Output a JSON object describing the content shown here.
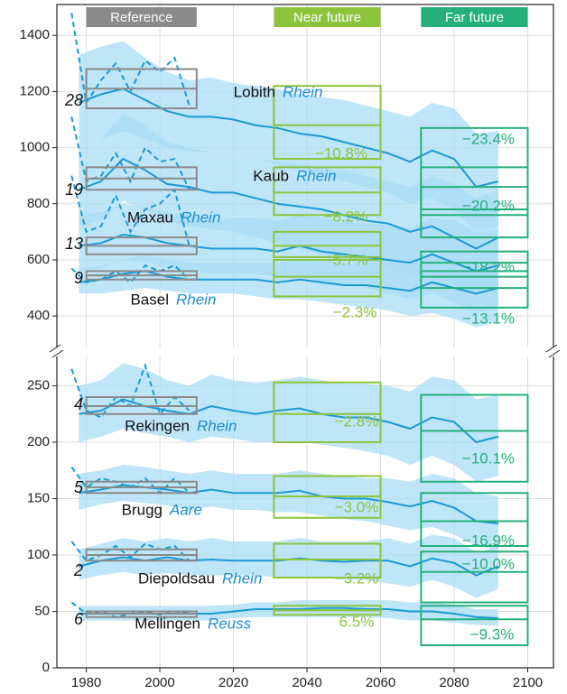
{
  "chart_data": {
    "type": "line",
    "x": [
      1978,
      1984,
      1990,
      1996,
      2002,
      2008,
      2014,
      2020,
      2026,
      2032,
      2038,
      2044,
      2050,
      2056,
      2062,
      2068,
      2074,
      2080,
      2086,
      2092
    ],
    "obs_x": [
      1976,
      1980,
      1984,
      1988,
      1992,
      1996,
      2000,
      2004,
      2008
    ],
    "xlim": [
      1972,
      2107
    ],
    "xticks": [
      1980,
      2000,
      2020,
      2040,
      2060,
      2080,
      2100
    ],
    "grid": true,
    "line_color": "#1a9ad6",
    "band_color": "#a9dcf6",
    "periods": [
      {
        "name": "Reference",
        "range": [
          1980,
          2010
        ],
        "color": "#8a8a8a"
      },
      {
        "name": "Near future",
        "range": [
          2031,
          2060
        ],
        "color": "#8cc43c"
      },
      {
        "name": "Far future",
        "range": [
          2071,
          2100
        ],
        "color": "#24b07a"
      }
    ],
    "panels": [
      {
        "ylim": [
          288,
          1510
        ],
        "yticks": [
          400,
          600,
          800,
          1000,
          1200,
          1400
        ],
        "gauges": [
          {
            "name": "Lobith",
            "river": "Rhein",
            "number": 28,
            "mean": [
              1160,
              1190,
              1210,
              1170,
              1130,
              1110,
              1110,
              1100,
              1080,
              1070,
              1050,
              1040,
              1020,
              1000,
              980,
              950,
              990,
              960,
              860,
              880
            ],
            "low": [
              1000,
              1030,
              1060,
              1030,
              1000,
              990,
              980,
              980,
              960,
              940,
              920,
              900,
              880,
              860,
              840,
              800,
              820,
              780,
              700,
              720
            ],
            "high": [
              1330,
              1360,
              1380,
              1320,
              1270,
              1240,
              1250,
              1230,
              1220,
              1210,
              1190,
              1180,
              1170,
              1150,
              1130,
              1110,
              1160,
              1140,
              1050,
              1060
            ],
            "observed": [
              1480,
              1160,
              1240,
              1300,
              1200,
              1310,
              1270,
              1320,
              1150
            ],
            "boxes": [
              {
                "low": 1140,
                "mid": 1210,
                "high": 1280
              },
              {
                "low": 960,
                "mid": 1080,
                "high": 1220,
                "label": "−10.8%"
              },
              {
                "low": 780,
                "mid": 930,
                "high": 1070,
                "label": "−23.4%"
              }
            ]
          },
          {
            "name": "Kaub",
            "river": "Rhein",
            "number": 19,
            "mean": [
              850,
              880,
              960,
              920,
              870,
              860,
              840,
              840,
              820,
              800,
              790,
              780,
              760,
              740,
              730,
              700,
              720,
              680,
              640,
              680
            ],
            "low": [
              720,
              740,
              810,
              780,
              740,
              720,
              710,
              700,
              680,
              660,
              640,
              620,
              600,
              590,
              570,
              540,
              550,
              510,
              470,
              500
            ],
            "high": [
              1000,
              1030,
              1120,
              1080,
              1020,
              1000,
              980,
              980,
              960,
              950,
              940,
              930,
              920,
              900,
              880,
              860,
              900,
              870,
              820,
              850
            ],
            "observed": [
              1110,
              880,
              900,
              980,
              880,
              1000,
              950,
              960,
              850
            ],
            "boxes": [
              {
                "low": 850,
                "mid": 890,
                "high": 930
              },
              {
                "low": 760,
                "mid": 840,
                "high": 930,
                "label": "−8.2%"
              },
              {
                "low": 680,
                "mid": 760,
                "high": 860,
                "label": "−20.2%"
              }
            ]
          },
          {
            "name": "Maxau",
            "river": "Rhein",
            "number": 13,
            "mean": [
              650,
              660,
              690,
              680,
              660,
              650,
              640,
              640,
              640,
              630,
              650,
              630,
              620,
              610,
              600,
              590,
              620,
              590,
              560,
              580
            ],
            "low": [
              560,
              570,
              600,
              590,
              570,
              560,
              550,
              550,
              550,
              540,
              540,
              520,
              510,
              500,
              480,
              460,
              480,
              450,
              410,
              430
            ],
            "high": [
              760,
              770,
              800,
              790,
              770,
              760,
              740,
              750,
              750,
              740,
              760,
              750,
              740,
              730,
              730,
              710,
              750,
              740,
              700,
              710
            ],
            "observed": [
              900,
              700,
              720,
              830,
              700,
              780,
              800,
              850,
              650
            ],
            "boxes": [
              {
                "low": 620,
                "mid": 650,
                "high": 680
              },
              {
                "low": 610,
                "mid": 650,
                "high": 700,
                "label": "−5.7%"
              },
              {
                "low": 540,
                "mid": 590,
                "high": 630,
                "label": "−18.2%"
              }
            ]
          },
          {
            "name": "Basel",
            "river": "Rhein",
            "number": 9,
            "mean": [
              520,
              530,
              550,
              560,
              540,
              530,
              530,
              530,
              530,
              520,
              530,
              520,
              510,
              510,
              500,
              490,
              520,
              500,
              480,
              500
            ],
            "low": [
              480,
              480,
              490,
              500,
              490,
              480,
              480,
              480,
              470,
              460,
              460,
              450,
              440,
              430,
              420,
              400,
              410,
              390,
              360,
              380
            ],
            "high": [
              570,
              580,
              600,
              620,
              600,
              590,
              590,
              590,
              590,
              590,
              600,
              600,
              590,
              590,
              590,
              580,
              610,
              600,
              580,
              590
            ],
            "observed": [
              570,
              520,
              530,
              560,
              520,
              580,
              560,
              580,
              530
            ],
            "boxes": [
              {
                "low": 530,
                "mid": 545,
                "high": 560
              },
              {
                "low": 470,
                "mid": 540,
                "high": 600,
                "label": "−2.3%"
              },
              {
                "low": 430,
                "mid": 500,
                "high": 560,
                "label": "−13.1%"
              }
            ]
          }
        ]
      },
      {
        "ylim": [
          0,
          276
        ],
        "yticks": [
          0,
          50,
          100,
          150,
          200,
          250
        ],
        "gauges": [
          {
            "name": "Rekingen",
            "river": "Rhein",
            "number": 4,
            "mean": [
              225,
              228,
              238,
              232,
              228,
              225,
              232,
              228,
              225,
              228,
              230,
              225,
              222,
              222,
              218,
              212,
              222,
              218,
              200,
              205
            ],
            "low": [
              200,
              205,
              212,
              208,
              205,
              200,
              205,
              203,
              200,
              200,
              200,
              198,
              195,
              192,
              188,
              180,
              188,
              180,
              165,
              170
            ],
            "high": [
              250,
              255,
              270,
              265,
              255,
              250,
              260,
              255,
              253,
              255,
              258,
              255,
              252,
              252,
              250,
              245,
              258,
              255,
              238,
              242
            ],
            "observed": [
              265,
              228,
              222,
              240,
              232,
              268,
              225,
              240,
              228
            ],
            "boxes": [
              {
                "low": 225,
                "mid": 232,
                "high": 240
              },
              {
                "low": 200,
                "mid": 225,
                "high": 253,
                "label": "−2.8%"
              },
              {
                "low": 165,
                "mid": 210,
                "high": 242,
                "label": "−10.1%"
              }
            ]
          },
          {
            "name": "Brugg",
            "river": "Aare",
            "number": 5,
            "mean": [
              155,
              158,
              162,
              160,
              158,
              155,
              158,
              155,
              155,
              155,
              157,
              152,
              150,
              150,
              147,
              143,
              148,
              142,
              130,
              128
            ],
            "low": [
              140,
              145,
              148,
              146,
              144,
              140,
              143,
              140,
              140,
              138,
              138,
              135,
              132,
              130,
              126,
              122,
              125,
              118,
              108,
              105
            ],
            "high": [
              172,
              175,
              180,
              178,
              175,
              172,
              175,
              172,
              172,
              172,
              175,
              172,
              170,
              168,
              168,
              165,
              172,
              168,
              155,
              152
            ],
            "observed": [
              178,
              160,
              168,
              165,
              160,
              168,
              155,
              168,
              155
            ],
            "boxes": [
              {
                "low": 155,
                "mid": 160,
                "high": 165
              },
              {
                "low": 133,
                "mid": 152,
                "high": 170,
                "label": "−3.0%"
              },
              {
                "low": 108,
                "mid": 130,
                "high": 155,
                "label": "−16.9%"
              }
            ]
          },
          {
            "name": "Diepoldsau",
            "river": "Rhein",
            "number": 2,
            "mean": [
              90,
              95,
              98,
              95,
              98,
              95,
              96,
              95,
              95,
              95,
              97,
              95,
              94,
              95,
              95,
              90,
              97,
              93,
              82,
              90
            ],
            "low": [
              78,
              82,
              85,
              82,
              84,
              82,
              82,
              82,
              82,
              80,
              80,
              80,
              78,
              78,
              75,
              72,
              78,
              72,
              62,
              70
            ],
            "high": [
              105,
              110,
              115,
              112,
              115,
              112,
              115,
              112,
              112,
              112,
              115,
              112,
              112,
              112,
              115,
              110,
              118,
              115,
              102,
              108
            ],
            "observed": [
              112,
              95,
              100,
              108,
              98,
              110,
              105,
              108,
              95
            ],
            "boxes": [
              {
                "low": 95,
                "mid": 100,
                "high": 105
              },
              {
                "low": 80,
                "mid": 96,
                "high": 110,
                "label": "−3.2%"
              },
              {
                "low": 58,
                "mid": 85,
                "high": 103,
                "label": "−10.0%"
              }
            ]
          },
          {
            "name": "Mellingen",
            "river": "Reuss",
            "number": 6,
            "mean": [
              48,
              48,
              48,
              48,
              48,
              48,
              48,
              50,
              52,
              52,
              52,
              53,
              53,
              52,
              52,
              50,
              50,
              48,
              45,
              44
            ],
            "low": [
              42,
              42,
              42,
              42,
              42,
              42,
              42,
              44,
              45,
              45,
              45,
              45,
              45,
              45,
              44,
              42,
              42,
              40,
              38,
              37
            ],
            "high": [
              55,
              55,
              55,
              55,
              55,
              55,
              55,
              56,
              58,
              58,
              60,
              60,
              60,
              60,
              60,
              58,
              58,
              56,
              52,
              52
            ],
            "observed": [
              58,
              48,
              50,
              45,
              48,
              50,
              47,
              50,
              48
            ],
            "boxes": [
              {
                "low": 45,
                "mid": 48,
                "high": 50
              },
              {
                "low": 47,
                "mid": 51,
                "high": 55,
                "label": "6.5%"
              },
              {
                "low": 20,
                "mid": 43,
                "high": 55,
                "label": "−9.3%"
              }
            ]
          }
        ]
      }
    ]
  }
}
